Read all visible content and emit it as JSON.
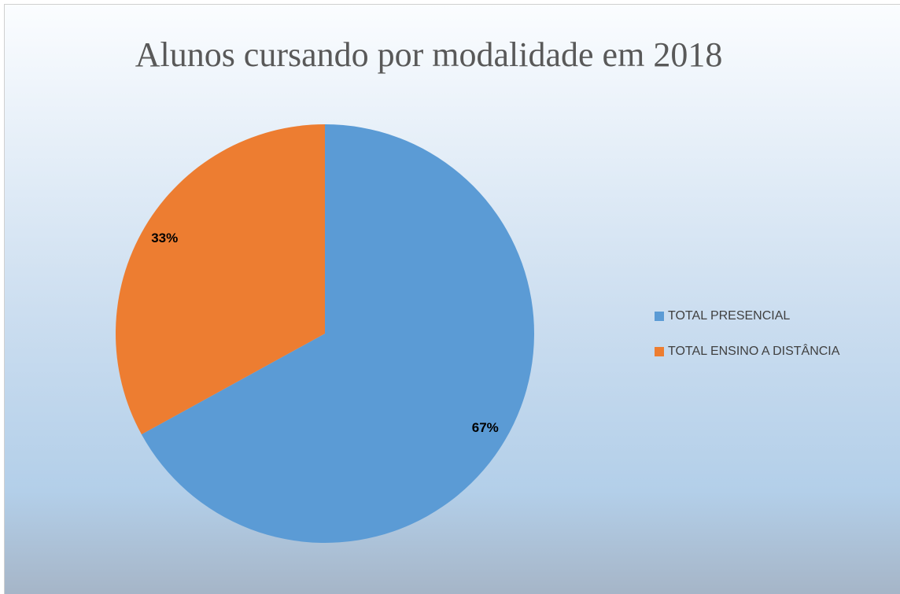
{
  "chart_data": {
    "type": "pie",
    "title": "Alunos cursando por modalidade em 2018",
    "categories": [
      "TOTAL PRESENCIAL",
      "TOTAL ENSINO A DISTÂNCIA"
    ],
    "values": [
      67,
      33
    ],
    "value_labels": [
      "67%",
      "33%"
    ],
    "colors": [
      "#5b9bd5",
      "#ed7d31"
    ],
    "legend": "right"
  }
}
